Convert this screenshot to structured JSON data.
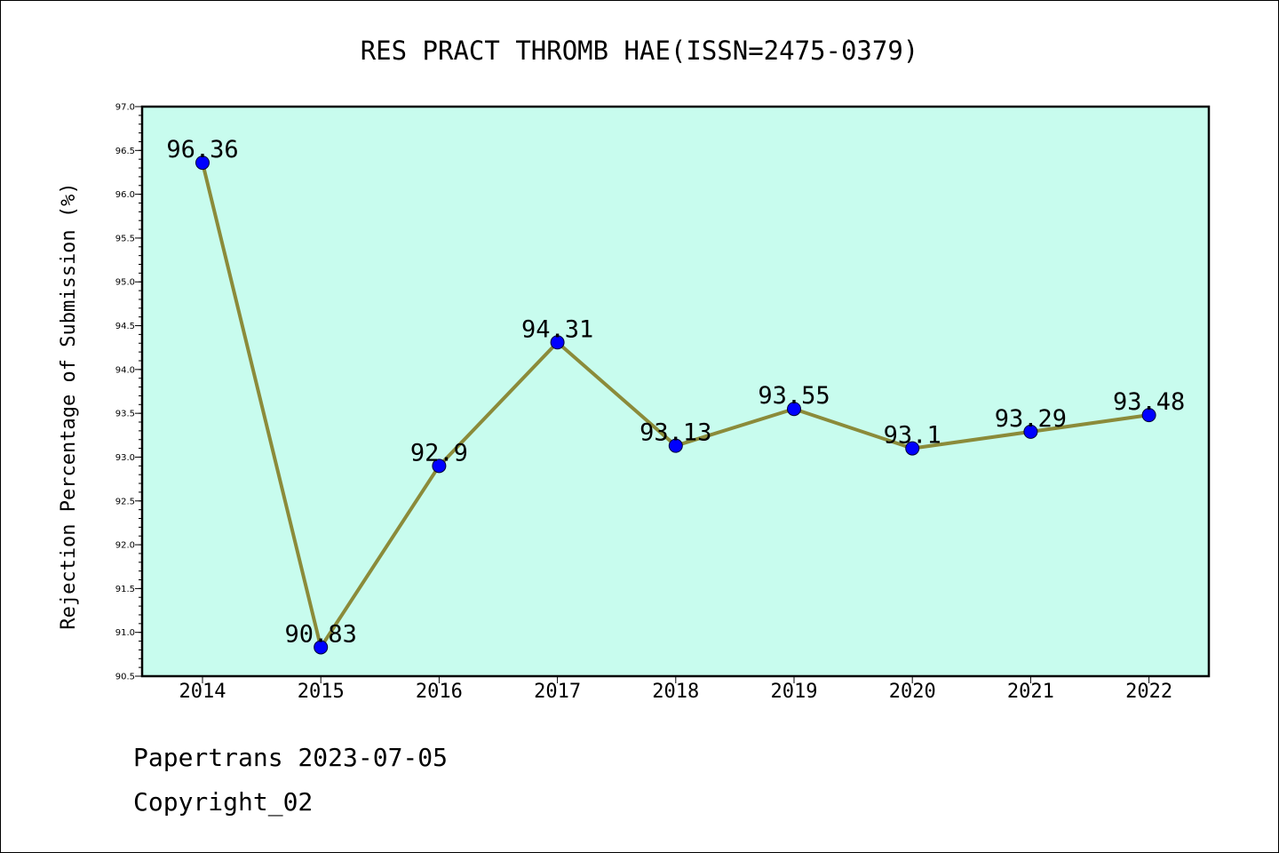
{
  "chart_data": {
    "type": "line",
    "title": "RES PRACT THROMB HAE(ISSN=2475-0379)",
    "xlabel": "",
    "ylabel": "Rejection Percentage of Submission (%)",
    "categories": [
      "2014",
      "2015",
      "2016",
      "2017",
      "2018",
      "2019",
      "2020",
      "2021",
      "2022"
    ],
    "series": [
      {
        "values": [
          96.36,
          90.83,
          92.9,
          94.31,
          93.13,
          93.55,
          93.1,
          93.29,
          93.48
        ],
        "data_labels": [
          "96.36",
          "90.83",
          "92.9",
          "94.31",
          "93.13",
          "93.55",
          "93.1",
          "93.29",
          "93.48"
        ]
      }
    ],
    "ylim": [
      90.5,
      97.0
    ],
    "yticks": [
      "90.5",
      "91.0",
      "91.5",
      "92.0",
      "92.5",
      "93.0",
      "93.5",
      "94.0",
      "94.5",
      "95.0",
      "95.5",
      "96.0",
      "96.5",
      "97.0"
    ],
    "grid": false,
    "legend": "none",
    "colors": {
      "plot_background": "#c8fcee",
      "line": "#8b8b3a",
      "marker": "#0000ff"
    }
  },
  "footer": {
    "date_line": "Papertrans 2023-07-05",
    "copyright_line": "Copyright_02"
  }
}
